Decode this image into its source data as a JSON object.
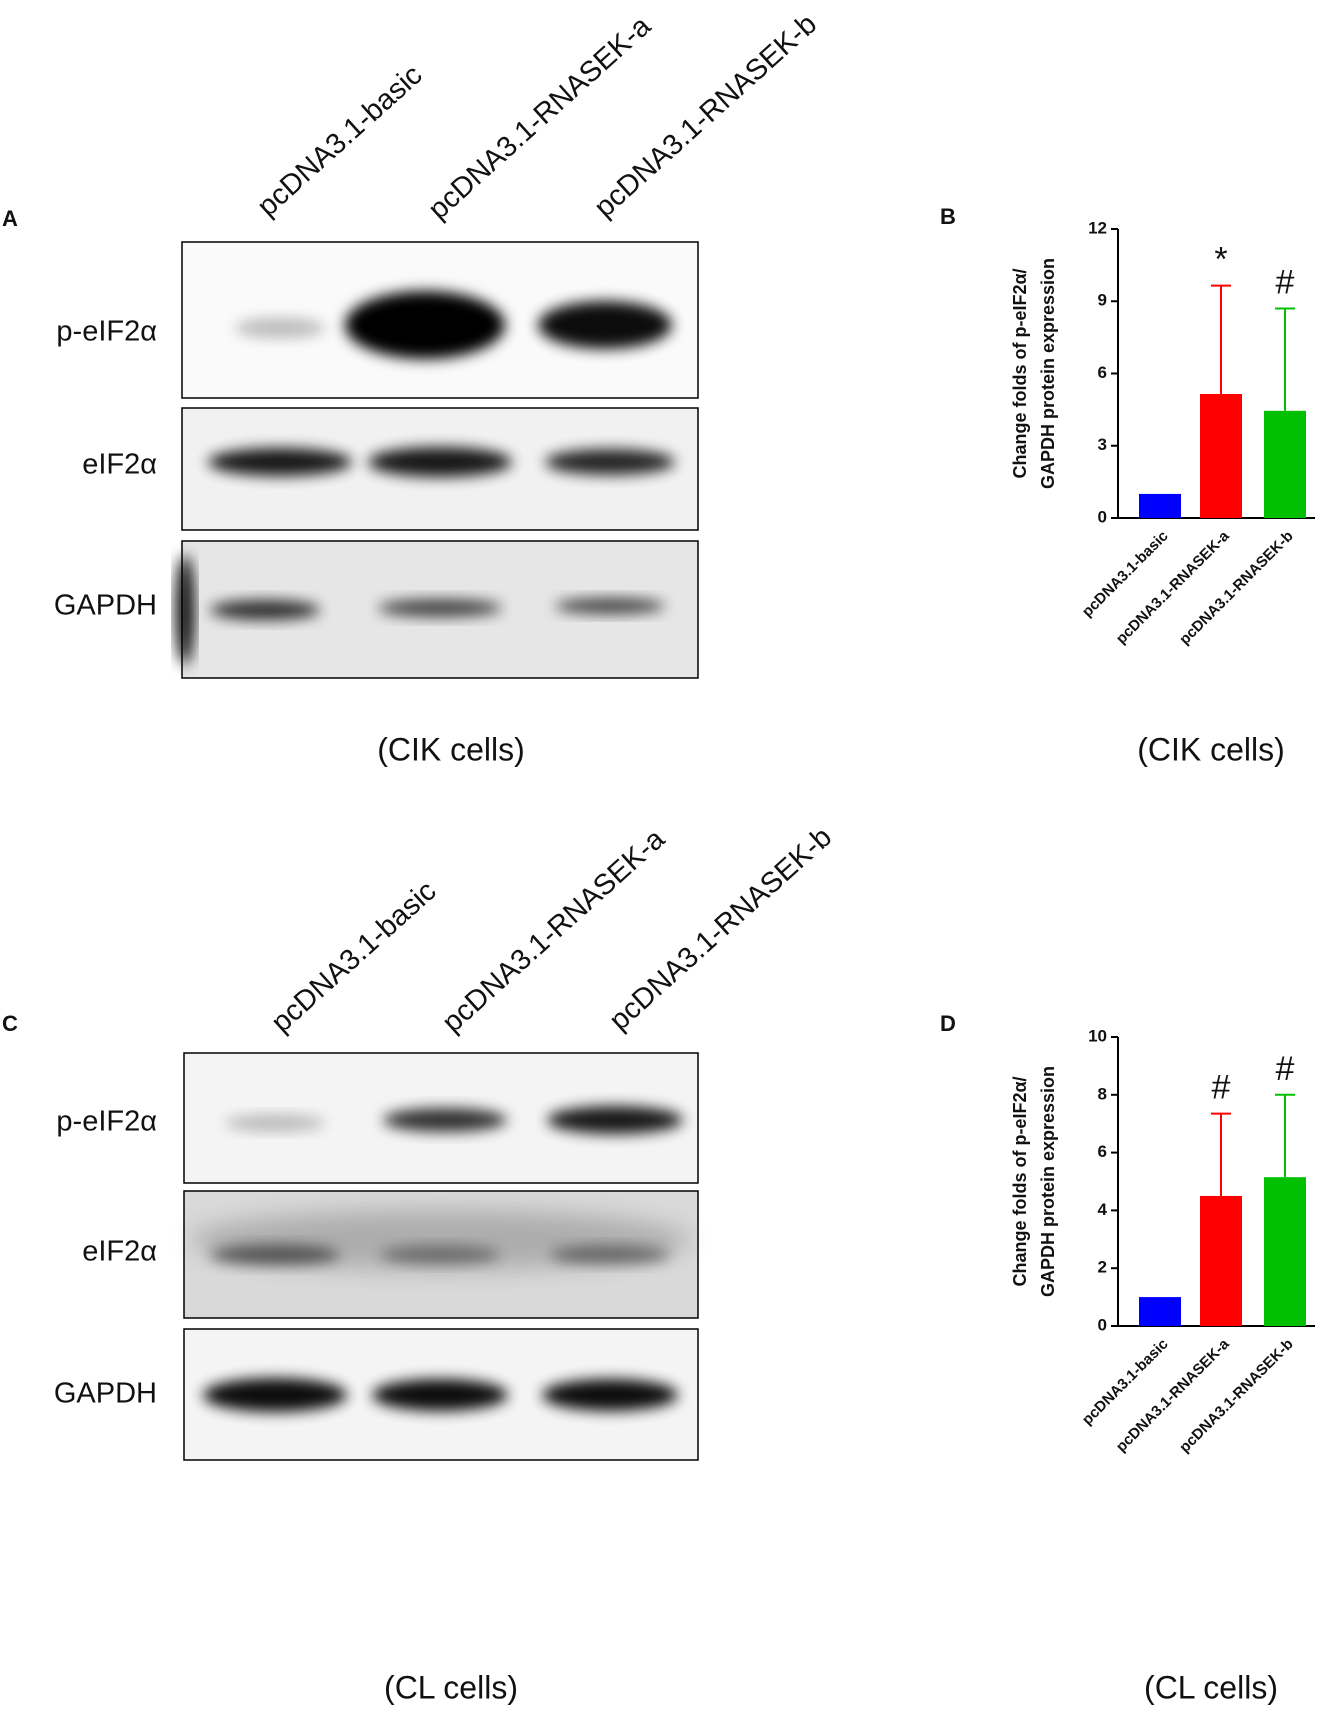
{
  "panels": [
    {
      "label": "A",
      "lanes": [
        "pcDNA3.1-basic",
        "pcDNA3.1-RNASEK-a",
        "pcDNA3.1-RNASEK-b"
      ],
      "rows": [
        "p-eIF2α",
        "eIF2α",
        "GAPDH"
      ],
      "caption": "(CIK cells)"
    },
    {
      "label": "C",
      "lanes": [
        "pcDNA3.1-basic",
        "pcDNA3.1-RNASEK-a",
        "pcDNA3.1-RNASEK-b"
      ],
      "rows": [
        "p-eIF2α",
        "eIF2α",
        "GAPDH"
      ],
      "caption": "(CL cells)"
    }
  ],
  "chart_data": [
    {
      "type": "bar",
      "panel": "B",
      "ylabel": [
        "Change folds of p-eIF2α/",
        "GAPDH protein expression"
      ],
      "categories": [
        "pcDNA3.1-basic",
        "pcDNA3.1-RNASEK-a",
        "pcDNA3.1-RNASEK-b"
      ],
      "values": [
        1,
        5.15,
        4.45
      ],
      "errors": [
        0,
        4.5,
        4.25
      ],
      "colors": [
        "#0000ff",
        "#ff0000",
        "#00c000"
      ],
      "annotations": [
        "",
        "*",
        "#"
      ],
      "ylim": [
        0,
        12
      ],
      "yticks": [
        0,
        3,
        6,
        9,
        12
      ],
      "caption": "(CIK cells)"
    },
    {
      "type": "bar",
      "panel": "D",
      "ylabel": [
        "Change folds of p-eIF2α/",
        "GAPDH protein expression"
      ],
      "categories": [
        "pcDNA3.1-basic",
        "pcDNA3.1-RNASEK-a",
        "pcDNA3.1-RNASEK-b"
      ],
      "values": [
        1,
        4.5,
        5.15
      ],
      "errors": [
        0,
        2.85,
        2.85
      ],
      "colors": [
        "#0000ff",
        "#ff0000",
        "#00c000"
      ],
      "annotations": [
        "",
        "#",
        "#"
      ],
      "ylim": [
        0,
        10
      ],
      "yticks": [
        0,
        2,
        4,
        6,
        8,
        10
      ],
      "caption": "(CL cells)"
    }
  ]
}
